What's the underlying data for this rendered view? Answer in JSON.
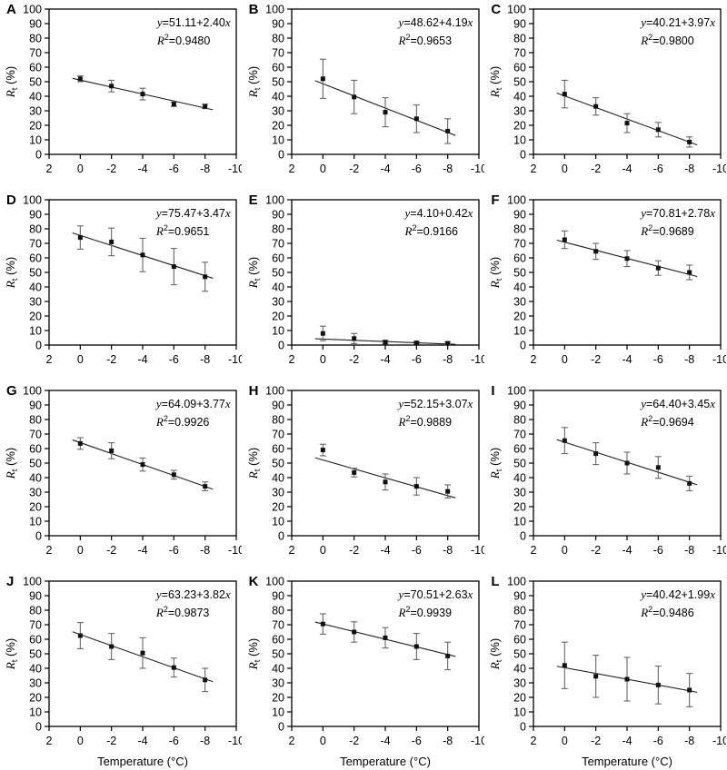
{
  "chart_data": {
    "type": "scatter",
    "xlabel": "Temperature (°C)",
    "ylabel": "Rt (%)",
    "ylabel_parts": {
      "symbol": "R",
      "subscript": "t",
      "unit": " (%)"
    },
    "xlim": [
      2,
      -10
    ],
    "ylim": [
      0,
      100
    ],
    "xticks": [
      2,
      0,
      -2,
      -4,
      -6,
      -8,
      -10
    ],
    "yticks": [
      0,
      10,
      20,
      30,
      40,
      50,
      60,
      70,
      80,
      90,
      100
    ],
    "x": [
      0,
      -2,
      -4,
      -6,
      -8
    ],
    "line_x_range": [
      0.5,
      -8.5
    ],
    "panels": [
      {
        "label": "A",
        "equation": "y=51.11+2.40x",
        "r2": "0.9480",
        "fit": [
          51.11,
          2.4
        ],
        "y": [
          52,
          47,
          41.5,
          34.5,
          33
        ],
        "yerr": [
          2,
          4,
          4,
          1.5,
          1.5
        ]
      },
      {
        "label": "B",
        "equation": "y=48.62+4.19x",
        "r2": "0.9653",
        "fit": [
          48.62,
          4.19
        ],
        "y": [
          52,
          39.5,
          29,
          24.5,
          16
        ],
        "yerr": [
          13.5,
          11.5,
          10,
          9.5,
          8.5
        ]
      },
      {
        "label": "C",
        "equation": "y=40.21+3.97x",
        "r2": "0.9800",
        "fit": [
          40.21,
          3.97
        ],
        "y": [
          41.5,
          33,
          21.5,
          17,
          8.5
        ],
        "yerr": [
          9.5,
          6,
          6.5,
          5,
          3.5
        ]
      },
      {
        "label": "D",
        "equation": "y=75.47+3.47x",
        "r2": "0.9651",
        "fit": [
          75.47,
          3.47
        ],
        "y": [
          74,
          71,
          62,
          54,
          47
        ],
        "yerr": [
          8,
          9.5,
          11.5,
          12.5,
          10
        ]
      },
      {
        "label": "E",
        "equation": "y=4.10+0.42x",
        "r2": "0.9166",
        "fit": [
          4.1,
          0.42
        ],
        "y": [
          8,
          4.5,
          2,
          1.5,
          1.2
        ],
        "yerr": [
          5,
          3.5,
          1.2,
          0.9,
          0.9
        ]
      },
      {
        "label": "F",
        "equation": "y=70.81+2.78x",
        "r2": "0.9689",
        "fit": [
          70.81,
          2.78
        ],
        "y": [
          72.5,
          64.5,
          59.5,
          53,
          50
        ],
        "yerr": [
          6,
          5.5,
          5.5,
          5,
          5
        ]
      },
      {
        "label": "G",
        "equation": "y=64.09+3.77x",
        "r2": "0.9926",
        "fit": [
          64.09,
          3.77
        ],
        "y": [
          63.5,
          58.5,
          49,
          42,
          34
        ],
        "yerr": [
          4,
          5.5,
          4.5,
          3,
          3
        ]
      },
      {
        "label": "H",
        "equation": "y=52.15+3.07x",
        "r2": "0.9889",
        "fit": [
          52.15,
          3.07
        ],
        "y": [
          59,
          43.5,
          37,
          34,
          30.5
        ],
        "yerr": [
          4,
          3,
          5.5,
          6,
          4.5
        ]
      },
      {
        "label": "I",
        "equation": "y=64.40+3.45x",
        "r2": "0.9694",
        "fit": [
          64.4,
          3.45
        ],
        "y": [
          65.5,
          56.5,
          50,
          47,
          36
        ],
        "yerr": [
          9,
          7.5,
          7.5,
          7.5,
          5
        ]
      },
      {
        "label": "J",
        "equation": "y=63.23+3.82x",
        "r2": "0.9873",
        "fit": [
          63.23,
          3.82
        ],
        "y": [
          62.5,
          55,
          50.5,
          40.5,
          32
        ],
        "yerr": [
          9,
          9,
          10.5,
          6.5,
          8
        ]
      },
      {
        "label": "K",
        "equation": "y=70.51+2.63x",
        "r2": "0.9939",
        "fit": [
          70.51,
          2.63
        ],
        "y": [
          70.5,
          65,
          61,
          55,
          48.5
        ],
        "yerr": [
          7,
          7,
          7,
          9,
          9.5
        ]
      },
      {
        "label": "L",
        "equation": "y=40.42+1.99x",
        "r2": "0.9486",
        "fit": [
          40.42,
          1.99
        ],
        "y": [
          42,
          34.5,
          32.5,
          28.5,
          25
        ],
        "yerr": [
          16,
          14.5,
          15,
          13,
          11.5
        ]
      }
    ]
  },
  "colors": {
    "background": "#ffffff",
    "axis": "#000000",
    "text": "#000000",
    "marker": "#111111",
    "line": "#222222",
    "errorbar": "#666666"
  }
}
